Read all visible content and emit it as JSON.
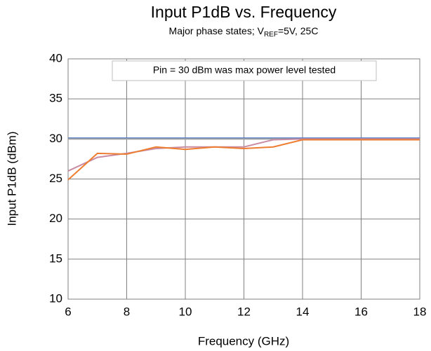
{
  "chart_data": {
    "type": "line",
    "title": "Input P1dB vs. Frequency",
    "subtitle": {
      "prefix": "Major phase states; V",
      "subscript": "REF",
      "suffix": "=5V, 25C"
    },
    "annotation": "Pin = 30 dBm was max power level tested",
    "x_label": "Frequency (GHz)",
    "y_label": "Input P1dB (dBm)",
    "x": [
      6,
      7,
      8,
      9,
      10,
      11,
      12,
      13,
      14,
      15,
      16,
      17,
      18
    ],
    "series": [
      {
        "color": "#4472c4",
        "values": [
          30.1,
          30.1,
          30.1,
          30.1,
          30.1,
          30.1,
          30.1,
          30.1,
          30.1,
          30.1,
          30.1,
          30.1,
          30.1
        ]
      },
      {
        "color": "#a5a5a5",
        "values": [
          30.0,
          30.0,
          30.0,
          30.0,
          30.0,
          30.0,
          30.0,
          30.0,
          30.0,
          30.0,
          30.0,
          30.0,
          30.0
        ]
      },
      {
        "color": "#c98ca3",
        "values": [
          26.0,
          27.7,
          28.2,
          28.8,
          29.0,
          29.0,
          29.0,
          29.9,
          30.0,
          30.0,
          30.0,
          30.0,
          30.0
        ]
      },
      {
        "color": "#ed7d31",
        "values": [
          24.9,
          28.2,
          28.1,
          29.0,
          28.7,
          29.0,
          28.8,
          29.0,
          29.9,
          29.9,
          29.9,
          29.9,
          29.9
        ]
      }
    ],
    "xlim": [
      6,
      18
    ],
    "xticks": [
      6,
      8,
      10,
      12,
      14,
      16,
      18
    ],
    "ylim": [
      10,
      40
    ],
    "yticks": [
      10,
      15,
      20,
      25,
      30,
      35,
      40
    ],
    "grid": true
  }
}
